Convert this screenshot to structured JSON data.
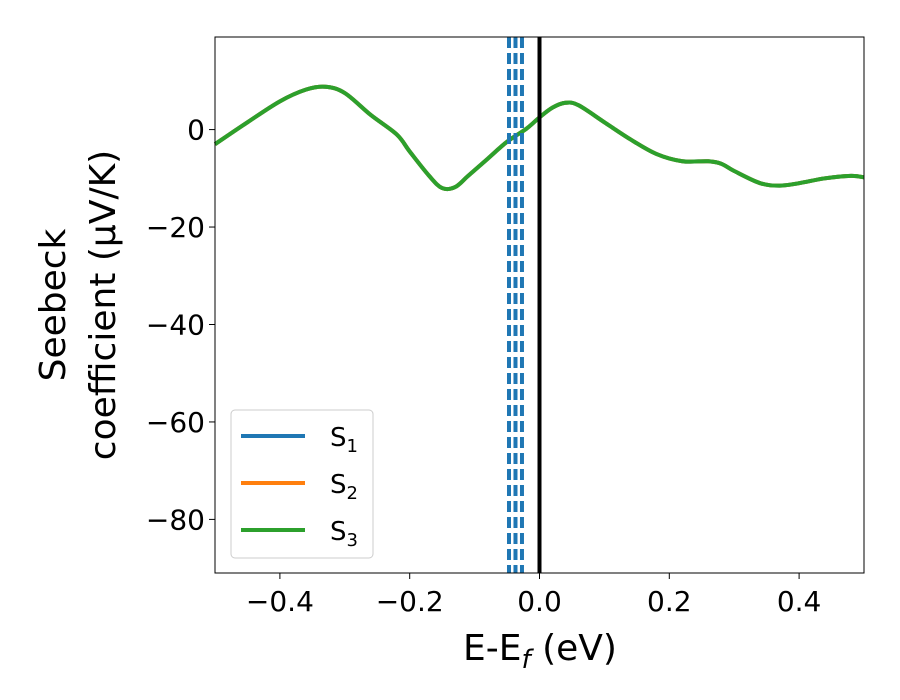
{
  "chart_data": {
    "type": "line",
    "xlabel": "E-E",
    "xlabel_sub": "f",
    "xlabel_unit": " (eV)",
    "ylabel_line1": "Seebeck",
    "ylabel_line2": "coefficient  (μV/K)",
    "xlim": [
      -0.5,
      0.5
    ],
    "ylim": [
      -91,
      19
    ],
    "xticks": [
      -0.4,
      -0.2,
      0.0,
      0.2,
      0.4
    ],
    "xtick_labels": [
      "−0.4",
      "−0.2",
      "0.0",
      "0.2",
      "0.4"
    ],
    "yticks": [
      0,
      -20,
      -40,
      -60,
      -80
    ],
    "ytick_labels": [
      "0",
      "−20",
      "−40",
      "−60",
      "−80"
    ],
    "grid": false,
    "legend_position": "lower-left",
    "series": [
      {
        "name": "S",
        "sub": "1",
        "color": "#1f77b4",
        "x": [
          -0.5,
          -0.45,
          -0.4,
          -0.36,
          -0.33,
          -0.3,
          -0.26,
          -0.22,
          -0.2,
          -0.17,
          -0.15,
          -0.13,
          -0.11,
          -0.08,
          -0.05,
          -0.02,
          0.0,
          0.02,
          0.04,
          0.06,
          0.1,
          0.14,
          0.18,
          0.22,
          0.26,
          0.28,
          0.3,
          0.34,
          0.37,
          0.4,
          0.44,
          0.48,
          0.5
        ],
        "y": [
          -3,
          1.5,
          5.8,
          8.2,
          8.8,
          7.5,
          3.0,
          -1.0,
          -4.5,
          -9.5,
          -12.0,
          -11.8,
          -9.5,
          -6.0,
          -2.5,
          0.2,
          2.5,
          4.5,
          5.5,
          5.0,
          1.5,
          -2.0,
          -5.0,
          -6.5,
          -6.5,
          -7.0,
          -8.5,
          -11.0,
          -11.5,
          -11.0,
          -10.0,
          -9.5,
          -9.8
        ]
      },
      {
        "name": "S",
        "sub": "2",
        "color": "#ff7f0e",
        "x": [
          -0.5,
          -0.45,
          -0.4,
          -0.36,
          -0.33,
          -0.3,
          -0.26,
          -0.22,
          -0.2,
          -0.17,
          -0.15,
          -0.13,
          -0.11,
          -0.08,
          -0.05,
          -0.02,
          0.0,
          0.02,
          0.04,
          0.06,
          0.1,
          0.14,
          0.18,
          0.22,
          0.26,
          0.28,
          0.3,
          0.34,
          0.37,
          0.4,
          0.44,
          0.48,
          0.5
        ],
        "y": [
          -3,
          1.5,
          5.8,
          8.2,
          8.8,
          7.5,
          3.0,
          -1.0,
          -4.5,
          -9.5,
          -12.0,
          -11.8,
          -9.5,
          -6.0,
          -2.5,
          0.2,
          2.5,
          4.5,
          5.5,
          5.0,
          1.5,
          -2.0,
          -5.0,
          -6.5,
          -6.5,
          -7.0,
          -8.5,
          -11.0,
          -11.5,
          -11.0,
          -10.0,
          -9.5,
          -9.8
        ]
      },
      {
        "name": "S",
        "sub": "3",
        "color": "#2ca02c",
        "x": [
          -0.5,
          -0.45,
          -0.4,
          -0.36,
          -0.33,
          -0.3,
          -0.26,
          -0.22,
          -0.2,
          -0.17,
          -0.15,
          -0.13,
          -0.11,
          -0.08,
          -0.05,
          -0.02,
          0.0,
          0.02,
          0.04,
          0.06,
          0.1,
          0.14,
          0.18,
          0.22,
          0.26,
          0.28,
          0.3,
          0.34,
          0.37,
          0.4,
          0.44,
          0.48,
          0.5
        ],
        "y": [
          -3,
          1.5,
          5.8,
          8.2,
          8.8,
          7.5,
          3.0,
          -1.0,
          -4.5,
          -9.5,
          -12.0,
          -11.8,
          -9.5,
          -6.0,
          -2.5,
          0.2,
          2.5,
          4.5,
          5.5,
          5.0,
          1.5,
          -2.0,
          -5.0,
          -6.5,
          -6.5,
          -7.0,
          -8.5,
          -11.0,
          -11.5,
          -11.0,
          -10.0,
          -9.5,
          -9.8
        ]
      }
    ],
    "vlines": [
      {
        "x": -0.047,
        "style": "dashed",
        "color": "#1f77b4"
      },
      {
        "x": -0.037,
        "style": "dashed",
        "color": "#1f77b4"
      },
      {
        "x": -0.027,
        "style": "dashed",
        "color": "#1f77b4"
      },
      {
        "x": 0.0,
        "style": "solid",
        "color": "#000000"
      }
    ]
  }
}
